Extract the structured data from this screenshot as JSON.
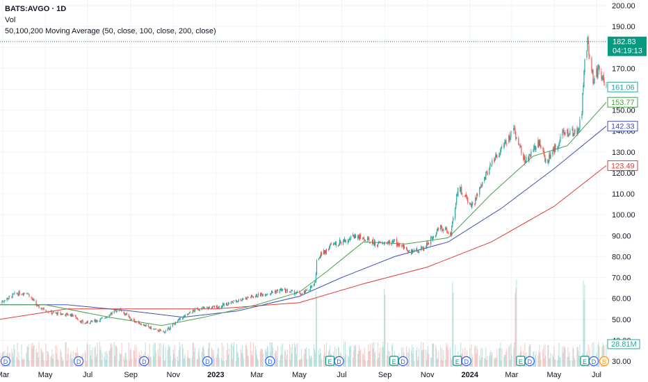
{
  "legend": {
    "symbol": "BATS:AVGO · 1D",
    "volume": "Vol",
    "moving_average": "50,100,200 Moving Average (50, close, 100, close, 200, close)"
  },
  "colors": {
    "up": "#26a69a",
    "down": "#ef5350",
    "ma50": "#43a047",
    "ma100": "#3f51b5",
    "ma200": "#e53935",
    "last_price": "#089981",
    "grid": "#f0f3fa"
  },
  "price_badges": {
    "last": "182.83",
    "countdown": "04:19:13",
    "close_marker": "161.06",
    "ma50": "153.77",
    "ma100": "142.33",
    "ma200": "123.49",
    "volume": "28.81M"
  },
  "events": {
    "dividend_letter": "D",
    "earnings_letter": "E",
    "split_letter": "S",
    "items": [
      {
        "type": "D",
        "color": "#2962ff",
        "date": "2022-03"
      },
      {
        "type": "D",
        "color": "#2962ff",
        "date": "2022-06"
      },
      {
        "type": "D",
        "color": "#2962ff",
        "date": "2022-09"
      },
      {
        "type": "D",
        "color": "#2962ff",
        "date": "2022-12"
      },
      {
        "type": "D",
        "color": "#2962ff",
        "date": "2023-03"
      },
      {
        "type": "E",
        "color": "#089981",
        "date": "2023-06"
      },
      {
        "type": "D",
        "color": "#2962ff",
        "date": "2023-06"
      },
      {
        "type": "E",
        "color": "#089981",
        "date": "2023-09"
      },
      {
        "type": "D",
        "color": "#2962ff",
        "date": "2023-09"
      },
      {
        "type": "E",
        "color": "#089981",
        "date": "2023-12"
      },
      {
        "type": "D",
        "color": "#2962ff",
        "date": "2023-12"
      },
      {
        "type": "E",
        "color": "#089981",
        "date": "2024-03"
      },
      {
        "type": "D",
        "color": "#2962ff",
        "date": "2024-03"
      },
      {
        "type": "E",
        "color": "#089981",
        "date": "2024-06"
      },
      {
        "type": "D",
        "color": "#2962ff",
        "date": "2024-06"
      },
      {
        "type": "S",
        "color": "#ff9800",
        "date": "2024-07"
      }
    ]
  },
  "chart_data": {
    "type": "candlestick",
    "title": "BATS:AVGO · 1D",
    "ylim": [
      30,
      200
    ],
    "ytick_labels": [
      "30.00",
      "40.00",
      "50.00",
      "60.00",
      "70.00",
      "80.00",
      "90.00",
      "100.00",
      "110.00",
      "120.00",
      "130.00",
      "140.00",
      "150.00",
      "160.00",
      "170.00",
      "180.00",
      "190.00",
      "200.00"
    ],
    "xtick_labels": [
      "Mar",
      "May",
      "Jul",
      "Sep",
      "Nov",
      "2023",
      "Mar",
      "May",
      "Jul",
      "Sep",
      "Nov",
      "2024",
      "Mar",
      "May",
      "Jul"
    ],
    "price_path": [
      {
        "date": "2022-02-25",
        "close": 58
      },
      {
        "date": "2022-03-18",
        "close": 62
      },
      {
        "date": "2022-04-05",
        "close": 63
      },
      {
        "date": "2022-04-20",
        "close": 56
      },
      {
        "date": "2022-05-12",
        "close": 53
      },
      {
        "date": "2022-06-10",
        "close": 52
      },
      {
        "date": "2022-06-25",
        "close": 48
      },
      {
        "date": "2022-07-20",
        "close": 50
      },
      {
        "date": "2022-08-16",
        "close": 55
      },
      {
        "date": "2022-09-01",
        "close": 50
      },
      {
        "date": "2022-10-05",
        "close": 45
      },
      {
        "date": "2022-10-20",
        "close": 44
      },
      {
        "date": "2022-11-10",
        "close": 50
      },
      {
        "date": "2022-12-05",
        "close": 55
      },
      {
        "date": "2023-01-05",
        "close": 56
      },
      {
        "date": "2023-02-10",
        "close": 60
      },
      {
        "date": "2023-03-10",
        "close": 62
      },
      {
        "date": "2023-04-05",
        "close": 64
      },
      {
        "date": "2023-05-05",
        "close": 62
      },
      {
        "date": "2023-05-24",
        "close": 67
      },
      {
        "date": "2023-05-26",
        "close": 79
      },
      {
        "date": "2023-06-15",
        "close": 85
      },
      {
        "date": "2023-07-20",
        "close": 90
      },
      {
        "date": "2023-08-20",
        "close": 86
      },
      {
        "date": "2023-09-15",
        "close": 87
      },
      {
        "date": "2023-10-10",
        "close": 82
      },
      {
        "date": "2023-10-27",
        "close": 84
      },
      {
        "date": "2023-11-20",
        "close": 94
      },
      {
        "date": "2023-12-05",
        "close": 91
      },
      {
        "date": "2023-12-15",
        "close": 113
      },
      {
        "date": "2024-01-05",
        "close": 104
      },
      {
        "date": "2024-02-01",
        "close": 125
      },
      {
        "date": "2024-03-05",
        "close": 140
      },
      {
        "date": "2024-03-20",
        "close": 125
      },
      {
        "date": "2024-04-10",
        "close": 135
      },
      {
        "date": "2024-04-20",
        "close": 125
      },
      {
        "date": "2024-05-15",
        "close": 139
      },
      {
        "date": "2024-06-05",
        "close": 140
      },
      {
        "date": "2024-06-10",
        "close": 150
      },
      {
        "date": "2024-06-13",
        "close": 170
      },
      {
        "date": "2024-06-18",
        "close": 183
      },
      {
        "date": "2024-06-26",
        "close": 165
      },
      {
        "date": "2024-07-05",
        "close": 170
      },
      {
        "date": "2024-07-15",
        "close": 160
      }
    ],
    "ma50": [
      {
        "date": "2022-02-25",
        "value": 57
      },
      {
        "date": "2022-05-01",
        "value": 57
      },
      {
        "date": "2022-08-01",
        "value": 51
      },
      {
        "date": "2022-10-15",
        "value": 47
      },
      {
        "date": "2022-12-15",
        "value": 51
      },
      {
        "date": "2023-03-01",
        "value": 57
      },
      {
        "date": "2023-05-01",
        "value": 63
      },
      {
        "date": "2023-06-10",
        "value": 73
      },
      {
        "date": "2023-08-01",
        "value": 87
      },
      {
        "date": "2023-10-01",
        "value": 86
      },
      {
        "date": "2023-12-01",
        "value": 89
      },
      {
        "date": "2024-02-01",
        "value": 110
      },
      {
        "date": "2024-04-01",
        "value": 128
      },
      {
        "date": "2024-05-20",
        "value": 133
      },
      {
        "date": "2024-07-15",
        "value": 153.77
      }
    ],
    "ma100": [
      {
        "date": "2022-02-25",
        "value": 57
      },
      {
        "date": "2022-06-01",
        "value": 57
      },
      {
        "date": "2022-09-01",
        "value": 54
      },
      {
        "date": "2022-11-15",
        "value": 51
      },
      {
        "date": "2023-02-01",
        "value": 54
      },
      {
        "date": "2023-05-01",
        "value": 61
      },
      {
        "date": "2023-07-01",
        "value": 70
      },
      {
        "date": "2023-09-15",
        "value": 80
      },
      {
        "date": "2023-12-01",
        "value": 87
      },
      {
        "date": "2024-02-15",
        "value": 103
      },
      {
        "date": "2024-05-01",
        "value": 122
      },
      {
        "date": "2024-07-15",
        "value": 142.33
      }
    ],
    "ma200": [
      {
        "date": "2022-02-25",
        "value": 50
      },
      {
        "date": "2022-06-01",
        "value": 55
      },
      {
        "date": "2022-10-01",
        "value": 55
      },
      {
        "date": "2023-01-01",
        "value": 55
      },
      {
        "date": "2023-05-01",
        "value": 58
      },
      {
        "date": "2023-08-01",
        "value": 67
      },
      {
        "date": "2023-11-01",
        "value": 75
      },
      {
        "date": "2024-02-01",
        "value": 87
      },
      {
        "date": "2024-05-01",
        "value": 104
      },
      {
        "date": "2024-07-15",
        "value": 123.49
      }
    ],
    "volume_spike_dates": [
      "2023-05-26",
      "2023-09-01",
      "2023-12-08",
      "2024-03-07",
      "2024-06-13"
    ]
  }
}
